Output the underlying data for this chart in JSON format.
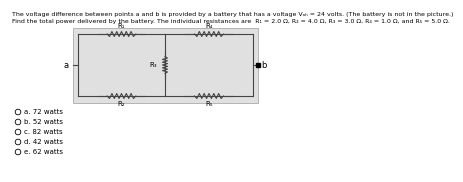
{
  "title_line1": "The voltage difference between points a and b is provided by a battery that has a voltage Vₐₕ = 24 volts. (The battery is not in the picture.)",
  "title_line2": "Find the total power delivered by the battery. The individual resistances are  R₁ = 2.0 Ω, R₂ = 4.0 Ω, R₃ = 3.0 Ω, R₄ = 1.0 Ω, and R₅ = 5.0 Ω.",
  "choices": [
    "a. 72 watts",
    "b. 52 watts",
    "c. 82 watts",
    "d. 42 watts",
    "e. 62 watts"
  ],
  "circuit": {
    "left_node": "a",
    "right_node": "b",
    "top_left_resistor": "R₁",
    "top_right_resistor": "R₄",
    "middle_resistor": "R₃",
    "bottom_left_resistor": "R₂",
    "bottom_right_resistor": "R₅"
  },
  "bg_color": "#ffffff",
  "text_color": "#000000",
  "circuit_bg": "#e0e0e0",
  "line_color": "#444444",
  "font_size_title": 4.5,
  "font_size_choice": 5.0,
  "font_size_label": 5.0
}
